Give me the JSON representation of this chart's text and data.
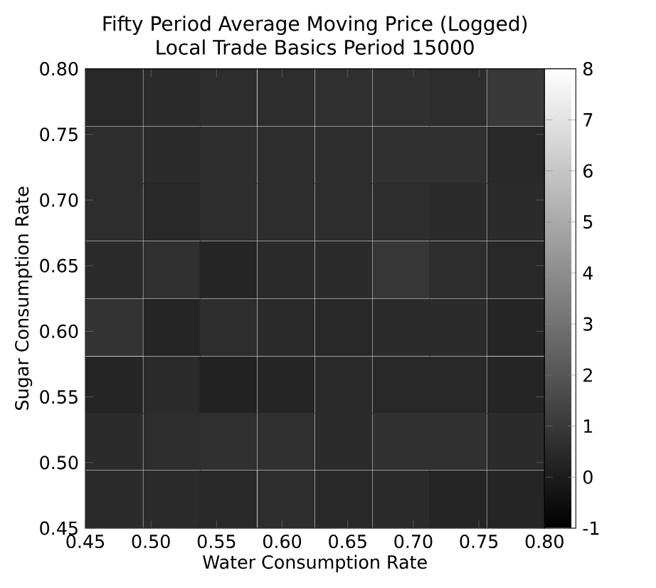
{
  "chart_data": {
    "type": "heatmap",
    "title": "Fifty Period Average Moving Price (Logged)",
    "subtitle": "Local Trade Basics Period 15000",
    "xlabel": "Water Consumption Rate",
    "ylabel": "Sugar Consumption Rate",
    "x": [
      0.472,
      0.516,
      0.559,
      0.603,
      0.647,
      0.691,
      0.734,
      0.778
    ],
    "y": [
      0.778,
      0.734,
      0.691,
      0.647,
      0.603,
      0.559,
      0.516,
      0.472
    ],
    "xlim": [
      0.45,
      0.8
    ],
    "ylim": [
      0.45,
      0.8
    ],
    "xticks": [
      0.45,
      {
        "value": 0.5,
        "label": "0.50"
      },
      0.55,
      {
        "value": 0.6,
        "label": "0.60"
      },
      0.65,
      {
        "value": 0.7,
        "label": "0.70"
      },
      0.75,
      {
        "value": 0.8,
        "label": "0.80"
      }
    ],
    "yticks": [
      0.45,
      {
        "value": 0.5,
        "label": "0.50"
      },
      0.55,
      {
        "value": 0.6,
        "label": "0.60"
      },
      0.65,
      {
        "value": 0.7,
        "label": "0.70"
      },
      0.75,
      {
        "value": 0.8,
        "label": "0.80"
      }
    ],
    "cells": [
      [
        0.4,
        0.5,
        0.6,
        0.6,
        0.7,
        0.7,
        0.6,
        1.0
      ],
      [
        0.6,
        0.5,
        0.6,
        0.6,
        0.6,
        0.7,
        0.7,
        0.4
      ],
      [
        0.6,
        0.4,
        0.6,
        0.6,
        0.6,
        0.6,
        0.5,
        0.5
      ],
      [
        0.5,
        0.7,
        0.3,
        0.5,
        0.5,
        0.9,
        0.6,
        0.4
      ],
      [
        0.8,
        0.3,
        0.6,
        0.5,
        0.4,
        0.5,
        0.5,
        0.3
      ],
      [
        0.3,
        0.5,
        0.2,
        0.3,
        0.5,
        0.4,
        0.4,
        0.3
      ],
      [
        0.5,
        0.6,
        0.7,
        0.7,
        0.5,
        0.7,
        0.7,
        0.5
      ],
      [
        0.5,
        0.5,
        0.4,
        0.6,
        0.4,
        0.5,
        0.3,
        0.3
      ]
    ],
    "clim": [
      -1,
      8
    ],
    "cticks": [
      -1,
      0,
      1,
      2,
      3,
      4,
      5,
      6,
      7,
      8
    ]
  }
}
